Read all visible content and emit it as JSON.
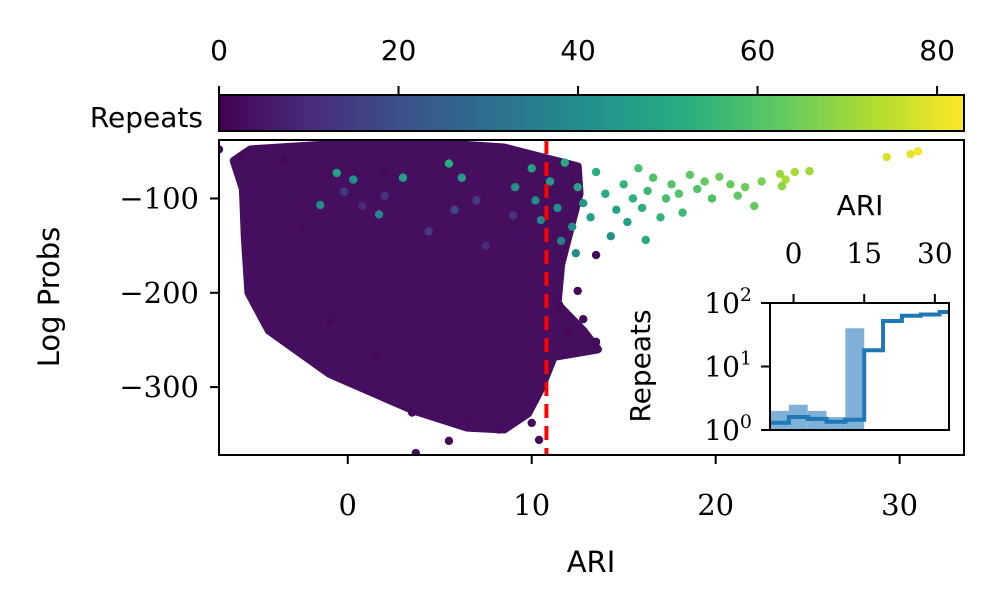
{
  "chart_data": [
    {
      "type": "scatter",
      "title": "",
      "xlabel": "ARI",
      "ylabel": "Log Probs",
      "xlim": [
        -7,
        33.5
      ],
      "ylim": [
        -372,
        -38
      ],
      "xticks": [
        0,
        10,
        20,
        30
      ],
      "xtick_labels": [
        "0",
        "10",
        "20",
        "30"
      ],
      "yticks": [
        -100,
        -200,
        -300
      ],
      "ytick_labels": [
        "−100",
        "−200",
        "−300"
      ],
      "grid": false,
      "colormap": "viridis",
      "colorbar": {
        "label": "Repeats",
        "range": [
          0,
          83
        ],
        "ticks": [
          0,
          20,
          40,
          60,
          80
        ],
        "tick_labels": [
          "0",
          "20",
          "40",
          "60",
          "80"
        ],
        "position": "top"
      },
      "reference_line": {
        "x": 10.8,
        "color": "#ff0000",
        "style": "dashed"
      },
      "colors": {
        "threshold_line": "#ff0000",
        "cmap_low": "#440154",
        "cmap_high": "#fde725"
      },
      "points": [
        {
          "x": -7,
          "y": -48,
          "c": 2
        },
        {
          "x": -5.8,
          "y": -57,
          "c": 2
        },
        {
          "x": -5,
          "y": -88,
          "c": 3
        },
        {
          "x": -3.5,
          "y": -60,
          "c": 2
        },
        {
          "x": -2.5,
          "y": -130,
          "c": 2
        },
        {
          "x": 0,
          "y": -150,
          "c": 3
        },
        {
          "x": 2,
          "y": -70,
          "c": 2
        },
        {
          "x": 3,
          "y": -120,
          "c": 3
        },
        {
          "x": -1,
          "y": -230,
          "c": 2
        },
        {
          "x": 1.5,
          "y": -270,
          "c": 2
        },
        {
          "x": 4,
          "y": -300,
          "c": 3
        },
        {
          "x": 6,
          "y": -250,
          "c": 3
        },
        {
          "x": 7,
          "y": -320,
          "c": 3
        },
        {
          "x": 8.5,
          "y": -290,
          "c": 3
        },
        {
          "x": 3.5,
          "y": -327,
          "c": 2
        },
        {
          "x": 6.5,
          "y": -336,
          "c": 2
        },
        {
          "x": 8.2,
          "y": -345,
          "c": 2
        },
        {
          "x": 10,
          "y": -338,
          "c": 2
        },
        {
          "x": 10.4,
          "y": -356,
          "c": 2
        },
        {
          "x": 12,
          "y": -243,
          "c": 2
        },
        {
          "x": 13.5,
          "y": -252,
          "c": 2
        },
        {
          "x": 11.5,
          "y": -213,
          "c": 2
        },
        {
          "x": 12.8,
          "y": -228,
          "c": 2
        },
        {
          "x": 5.5,
          "y": -357,
          "c": 2
        },
        {
          "x": 3.7,
          "y": -370,
          "c": 2
        },
        {
          "x": 13.5,
          "y": -160,
          "c": 2
        },
        {
          "x": 12.5,
          "y": -198,
          "c": 2
        },
        {
          "x": 5,
          "y": -200,
          "c": 3
        },
        {
          "x": 9.5,
          "y": -140,
          "c": 4
        },
        {
          "x": 9,
          "y": -118,
          "c": 12
        },
        {
          "x": 7,
          "y": -102,
          "c": 15
        },
        {
          "x": 5.8,
          "y": -112,
          "c": 18
        },
        {
          "x": 4.4,
          "y": -135,
          "c": 14
        },
        {
          "x": 7.5,
          "y": -150,
          "c": 10
        },
        {
          "x": 0.8,
          "y": -108,
          "c": 10
        },
        {
          "x": -0.2,
          "y": -93,
          "c": 14
        },
        {
          "x": 2,
          "y": -97,
          "c": 12
        },
        {
          "x": -0.6,
          "y": -73,
          "c": 48
        },
        {
          "x": 5.5,
          "y": -63,
          "c": 52
        },
        {
          "x": 3,
          "y": -78,
          "c": 46
        },
        {
          "x": 6.2,
          "y": -78,
          "c": 45
        },
        {
          "x": 9.1,
          "y": -88,
          "c": 42
        },
        {
          "x": -1.5,
          "y": -107,
          "c": 40
        },
        {
          "x": 1.7,
          "y": -117,
          "c": 38
        },
        {
          "x": 0.3,
          "y": -80,
          "c": 41
        },
        {
          "x": 10,
          "y": -68,
          "c": 48
        },
        {
          "x": 10.2,
          "y": -102,
          "c": 40
        },
        {
          "x": 10.5,
          "y": -123,
          "c": 38
        },
        {
          "x": 11,
          "y": -82,
          "c": 45
        },
        {
          "x": 11.4,
          "y": -110,
          "c": 42
        },
        {
          "x": 11.8,
          "y": -62,
          "c": 50
        },
        {
          "x": 12.2,
          "y": -130,
          "c": 40
        },
        {
          "x": 12.5,
          "y": -88,
          "c": 48
        },
        {
          "x": 12.8,
          "y": -105,
          "c": 44
        },
        {
          "x": 13.2,
          "y": -120,
          "c": 46
        },
        {
          "x": 13.5,
          "y": -72,
          "c": 52
        },
        {
          "x": 14,
          "y": -95,
          "c": 50
        },
        {
          "x": 14.3,
          "y": -140,
          "c": 42
        },
        {
          "x": 14.6,
          "y": -112,
          "c": 48
        },
        {
          "x": 15,
          "y": -85,
          "c": 54
        },
        {
          "x": 15.2,
          "y": -125,
          "c": 47
        },
        {
          "x": 15.5,
          "y": -100,
          "c": 53
        },
        {
          "x": 15.8,
          "y": -68,
          "c": 58
        },
        {
          "x": 16,
          "y": -110,
          "c": 52
        },
        {
          "x": 16.3,
          "y": -92,
          "c": 56
        },
        {
          "x": 16.6,
          "y": -78,
          "c": 60
        },
        {
          "x": 17,
          "y": -120,
          "c": 54
        },
        {
          "x": 17.3,
          "y": -100,
          "c": 58
        },
        {
          "x": 17.6,
          "y": -85,
          "c": 60
        },
        {
          "x": 18,
          "y": -95,
          "c": 60
        },
        {
          "x": 18.2,
          "y": -115,
          "c": 56
        },
        {
          "x": 18.6,
          "y": -75,
          "c": 62
        },
        {
          "x": 19,
          "y": -90,
          "c": 60
        },
        {
          "x": 19.4,
          "y": -82,
          "c": 63
        },
        {
          "x": 19.8,
          "y": -100,
          "c": 60
        },
        {
          "x": 20.2,
          "y": -77,
          "c": 64
        },
        {
          "x": 20.8,
          "y": -85,
          "c": 63
        },
        {
          "x": 21.2,
          "y": -97,
          "c": 62
        },
        {
          "x": 21.6,
          "y": -88,
          "c": 64
        },
        {
          "x": 22.5,
          "y": -82,
          "c": 66
        },
        {
          "x": 22.1,
          "y": -108,
          "c": 63
        },
        {
          "x": 23.5,
          "y": -74,
          "c": 70
        },
        {
          "x": 23.8,
          "y": -80,
          "c": 72
        },
        {
          "x": 24.3,
          "y": -72,
          "c": 72
        },
        {
          "x": 25.1,
          "y": -71,
          "c": 71
        },
        {
          "x": 23.6,
          "y": -87,
          "c": 68
        },
        {
          "x": 16.2,
          "y": -144,
          "c": 50
        },
        {
          "x": 12.4,
          "y": -158,
          "c": 40
        },
        {
          "x": 11.6,
          "y": -145,
          "c": 36
        },
        {
          "x": 29.3,
          "y": -56,
          "c": 78
        },
        {
          "x": 30.6,
          "y": -53,
          "c": 80
        },
        {
          "x": 31,
          "y": -50,
          "c": 82
        }
      ],
      "clusters": [
        {
          "color_value": 3,
          "polygon": [
            [
              -5.3,
              -48
            ],
            [
              -0.5,
              -42
            ],
            [
              4,
              -40
            ],
            [
              8.5,
              -46
            ],
            [
              12.5,
              -66
            ],
            [
              12.6,
              -95
            ],
            [
              11.6,
              -170
            ],
            [
              11.4,
              -212
            ],
            [
              12.8,
              -240
            ],
            [
              13.6,
              -260
            ],
            [
              11.2,
              -268
            ],
            [
              10.5,
              -302
            ],
            [
              9.8,
              -328
            ],
            [
              8.5,
              -345
            ],
            [
              6.5,
              -343
            ],
            [
              3.6,
              -325
            ],
            [
              -1,
              -286
            ],
            [
              -4.3,
              -240
            ],
            [
              -5.4,
              -200
            ],
            [
              -5.6,
              -140
            ],
            [
              -5.7,
              -90
            ],
            [
              -6.2,
              -60
            ]
          ]
        }
      ]
    },
    {
      "type": "area",
      "title": "",
      "xlabel": "ARI",
      "ylabel": "Repeats",
      "xscale": "linear",
      "yscale": "log",
      "xlim": [
        -5,
        33
      ],
      "ylim": [
        1,
        100
      ],
      "xticks": [
        0,
        15,
        30
      ],
      "xtick_labels": [
        "0",
        "15",
        "30"
      ],
      "yticks": [
        1,
        10,
        100
      ],
      "ytick_labels": [
        "10^0",
        "10^1",
        "10^2"
      ],
      "xaxis_position": "top",
      "colors": {
        "line": "#1f77b4",
        "fill": "#7fb0d8"
      },
      "steps_x": [
        -5,
        -1,
        3,
        7,
        11,
        15,
        19,
        23,
        27,
        31,
        33
      ],
      "line_values": [
        1.3,
        1.6,
        1.5,
        1.35,
        1.45,
        18,
        52,
        63,
        66,
        72
      ],
      "bar_edges": [
        -5,
        -1,
        3,
        7,
        11,
        15
      ],
      "bar_values": [
        2,
        2.5,
        2,
        1.6,
        40
      ]
    }
  ]
}
